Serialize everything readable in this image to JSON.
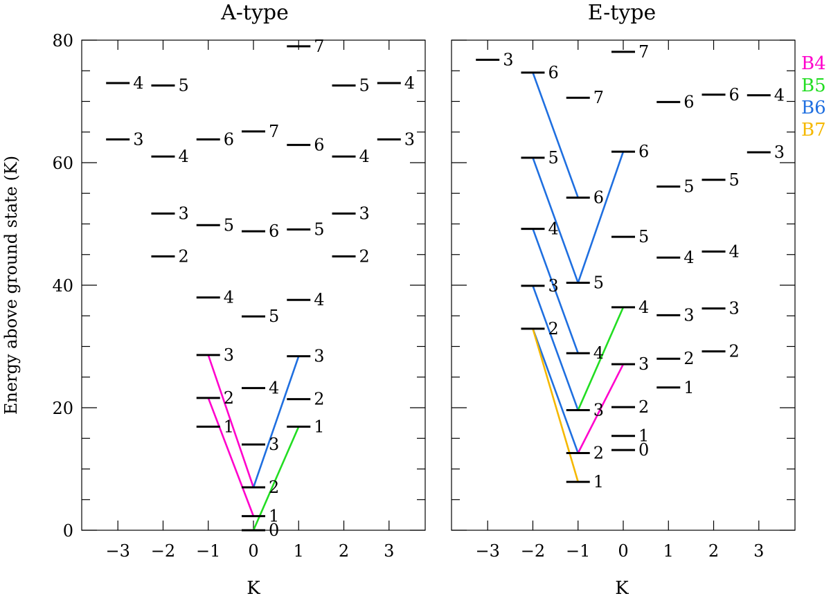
{
  "figure": {
    "ylabel": "Energy above ground state (K)",
    "legend": {
      "placement": "right",
      "entries": [
        {
          "label": "B4",
          "color": "#ff00cc"
        },
        {
          "label": "B5",
          "color": "#22dd22"
        },
        {
          "label": "B6",
          "color": "#1f6fe0"
        },
        {
          "label": "B7",
          "color": "#f5b800"
        }
      ]
    }
  },
  "chart_data": [
    {
      "type": "energy-level-diagram",
      "title": "A-type",
      "xlabel": "K",
      "xticks": [
        -3,
        -2,
        -1,
        0,
        1,
        2,
        3
      ],
      "xlim": [
        -3.8,
        3.8
      ],
      "ylim": [
        0,
        80
      ],
      "yticks": [
        0,
        20,
        40,
        60,
        80
      ],
      "levels": [
        {
          "K": -3,
          "E": 73.0,
          "label": "4"
        },
        {
          "K": -3,
          "E": 63.8,
          "label": "3"
        },
        {
          "K": -2,
          "E": 72.6,
          "label": "5"
        },
        {
          "K": -2,
          "E": 61.0,
          "label": "4"
        },
        {
          "K": -2,
          "E": 51.7,
          "label": "3"
        },
        {
          "K": -2,
          "E": 44.7,
          "label": "2"
        },
        {
          "K": -1,
          "E": 63.8,
          "label": "6"
        },
        {
          "K": -1,
          "E": 49.8,
          "label": "5"
        },
        {
          "K": -1,
          "E": 38.0,
          "label": "4"
        },
        {
          "K": -1,
          "E": 28.6,
          "label": "3"
        },
        {
          "K": -1,
          "E": 21.6,
          "label": "2"
        },
        {
          "K": -1,
          "E": 16.9,
          "label": "1"
        },
        {
          "K": 0,
          "E": 65.1,
          "label": "7"
        },
        {
          "K": 0,
          "E": 48.8,
          "label": "6"
        },
        {
          "K": 0,
          "E": 34.9,
          "label": "5"
        },
        {
          "K": 0,
          "E": 23.2,
          "label": "4"
        },
        {
          "K": 0,
          "E": 14.0,
          "label": "3"
        },
        {
          "K": 0,
          "E": 7.0,
          "label": "2"
        },
        {
          "K": 0,
          "E": 2.3,
          "label": "1"
        },
        {
          "K": 0,
          "E": 0.0,
          "label": "0"
        },
        {
          "K": 1,
          "E": 79.0,
          "label": "7"
        },
        {
          "K": 1,
          "E": 62.9,
          "label": "6"
        },
        {
          "K": 1,
          "E": 49.1,
          "label": "5"
        },
        {
          "K": 1,
          "E": 37.6,
          "label": "4"
        },
        {
          "K": 1,
          "E": 28.4,
          "label": "3"
        },
        {
          "K": 1,
          "E": 21.4,
          "label": "2"
        },
        {
          "K": 1,
          "E": 16.9,
          "label": "1"
        },
        {
          "K": 2,
          "E": 72.6,
          "label": "5"
        },
        {
          "K": 2,
          "E": 61.0,
          "label": "4"
        },
        {
          "K": 2,
          "E": 51.7,
          "label": "3"
        },
        {
          "K": 2,
          "E": 44.7,
          "label": "2"
        },
        {
          "K": 3,
          "E": 73.0,
          "label": "4"
        },
        {
          "K": 3,
          "E": 63.8,
          "label": "3"
        }
      ],
      "transitions": [
        {
          "from": [
            -1,
            28.6
          ],
          "to": [
            0,
            7.0
          ],
          "band": "B4"
        },
        {
          "from": [
            -1,
            21.6
          ],
          "to": [
            0,
            2.3
          ],
          "band": "B4"
        },
        {
          "from": [
            0,
            7.0
          ],
          "to": [
            1,
            28.4
          ],
          "band": "B6"
        },
        {
          "from": [
            0,
            0.0
          ],
          "to": [
            1,
            16.9
          ],
          "band": "B5"
        }
      ]
    },
    {
      "type": "energy-level-diagram",
      "title": "E-type",
      "xlabel": "K",
      "xticks": [
        -3,
        -2,
        -1,
        0,
        1,
        2,
        3
      ],
      "xlim": [
        -3.8,
        3.8
      ],
      "ylim": [
        0,
        80
      ],
      "yticks": [
        0,
        20,
        40,
        60,
        80
      ],
      "levels": [
        {
          "K": -3,
          "E": 76.8,
          "label": "3"
        },
        {
          "K": -2,
          "E": 74.7,
          "label": "6"
        },
        {
          "K": -2,
          "E": 60.8,
          "label": "5"
        },
        {
          "K": -2,
          "E": 49.2,
          "label": "4"
        },
        {
          "K": -2,
          "E": 39.9,
          "label": "3"
        },
        {
          "K": -2,
          "E": 32.9,
          "label": "2"
        },
        {
          "K": -1,
          "E": 70.6,
          "label": "7"
        },
        {
          "K": -1,
          "E": 54.3,
          "label": "6"
        },
        {
          "K": -1,
          "E": 40.4,
          "label": "5"
        },
        {
          "K": -1,
          "E": 28.9,
          "label": "4"
        },
        {
          "K": -1,
          "E": 19.6,
          "label": "3"
        },
        {
          "K": -1,
          "E": 12.6,
          "label": "2"
        },
        {
          "K": -1,
          "E": 7.9,
          "label": "1"
        },
        {
          "K": 0,
          "E": 78.1,
          "label": "7"
        },
        {
          "K": 0,
          "E": 61.8,
          "label": "6"
        },
        {
          "K": 0,
          "E": 47.9,
          "label": "5"
        },
        {
          "K": 0,
          "E": 36.4,
          "label": "4"
        },
        {
          "K": 0,
          "E": 27.1,
          "label": "3"
        },
        {
          "K": 0,
          "E": 20.1,
          "label": "2"
        },
        {
          "K": 0,
          "E": 15.4,
          "label": "1"
        },
        {
          "K": 0,
          "E": 13.1,
          "label": "0"
        },
        {
          "K": 1,
          "E": 69.9,
          "label": "6"
        },
        {
          "K": 1,
          "E": 56.1,
          "label": "5"
        },
        {
          "K": 1,
          "E": 44.5,
          "label": "4"
        },
        {
          "K": 1,
          "E": 35.1,
          "label": "3"
        },
        {
          "K": 1,
          "E": 28.0,
          "label": "2"
        },
        {
          "K": 1,
          "E": 23.3,
          "label": "1"
        },
        {
          "K": 2,
          "E": 71.1,
          "label": "6"
        },
        {
          "K": 2,
          "E": 57.2,
          "label": "5"
        },
        {
          "K": 2,
          "E": 45.5,
          "label": "4"
        },
        {
          "K": 2,
          "E": 36.2,
          "label": "3"
        },
        {
          "K": 2,
          "E": 29.2,
          "label": "2"
        },
        {
          "K": 3,
          "E": 71.0,
          "label": "4"
        },
        {
          "K": 3,
          "E": 61.7,
          "label": "3"
        }
      ],
      "transitions": [
        {
          "from": [
            -2,
            74.7
          ],
          "to": [
            -1,
            54.3
          ],
          "band": "B6"
        },
        {
          "from": [
            -2,
            60.8
          ],
          "to": [
            -1,
            40.4
          ],
          "band": "B6"
        },
        {
          "from": [
            -1,
            40.4
          ],
          "to": [
            0,
            61.8
          ],
          "band": "B6"
        },
        {
          "from": [
            -2,
            49.2
          ],
          "to": [
            -1,
            28.9
          ],
          "band": "B6"
        },
        {
          "from": [
            -2,
            39.9
          ],
          "to": [
            -1,
            19.6
          ],
          "band": "B6"
        },
        {
          "from": [
            -2,
            32.9
          ],
          "to": [
            -1,
            12.6
          ],
          "band": "B6"
        },
        {
          "from": [
            -2,
            32.9
          ],
          "to": [
            -1,
            7.9
          ],
          "band": "B7"
        },
        {
          "from": [
            -1,
            19.6
          ],
          "to": [
            0,
            36.4
          ],
          "band": "B5"
        },
        {
          "from": [
            -1,
            12.6
          ],
          "to": [
            0,
            27.1
          ],
          "band": "B4"
        }
      ]
    }
  ]
}
